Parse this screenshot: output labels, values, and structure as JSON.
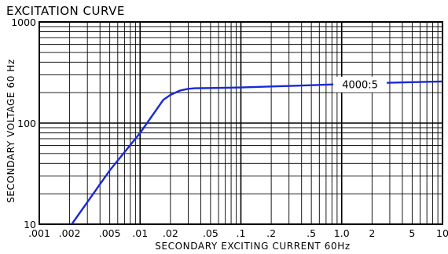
{
  "chart_data": {
    "type": "line",
    "title": "EXCITATION CURVE",
    "xlabel": "SECONDARY EXCITING CURRENT 60Hz",
    "ylabel": "SECONDARY VOLTAGE 60 Hz",
    "xscale": "log",
    "yscale": "log",
    "xlim": [
      0.001,
      10
    ],
    "ylim": [
      10,
      1000
    ],
    "grid": true,
    "x_ticks": [
      0.001,
      0.002,
      0.005,
      0.01,
      0.02,
      0.05,
      0.1,
      0.2,
      0.5,
      1,
      2,
      5,
      10
    ],
    "x_tick_labels": [
      ".001",
      ".002",
      ".005",
      ".01",
      ".02",
      ".05",
      ".1",
      ".2",
      ".5",
      "1.0",
      "2",
      "5",
      "10"
    ],
    "y_ticks": [
      10,
      100,
      1000
    ],
    "y_tick_labels": [
      "10",
      "100",
      "1000"
    ],
    "series": [
      {
        "name": "4000:5",
        "color": "#1a28d8",
        "x": [
          0.0021,
          0.005,
          0.01,
          0.017,
          0.02,
          0.025,
          0.03,
          0.035,
          0.05,
          0.1,
          0.2,
          0.5,
          1,
          2,
          5,
          10
        ],
        "y": [
          10,
          34,
          80,
          170,
          190,
          210,
          218,
          221,
          222,
          225,
          230,
          237,
          243,
          248,
          254,
          258
        ]
      }
    ]
  }
}
